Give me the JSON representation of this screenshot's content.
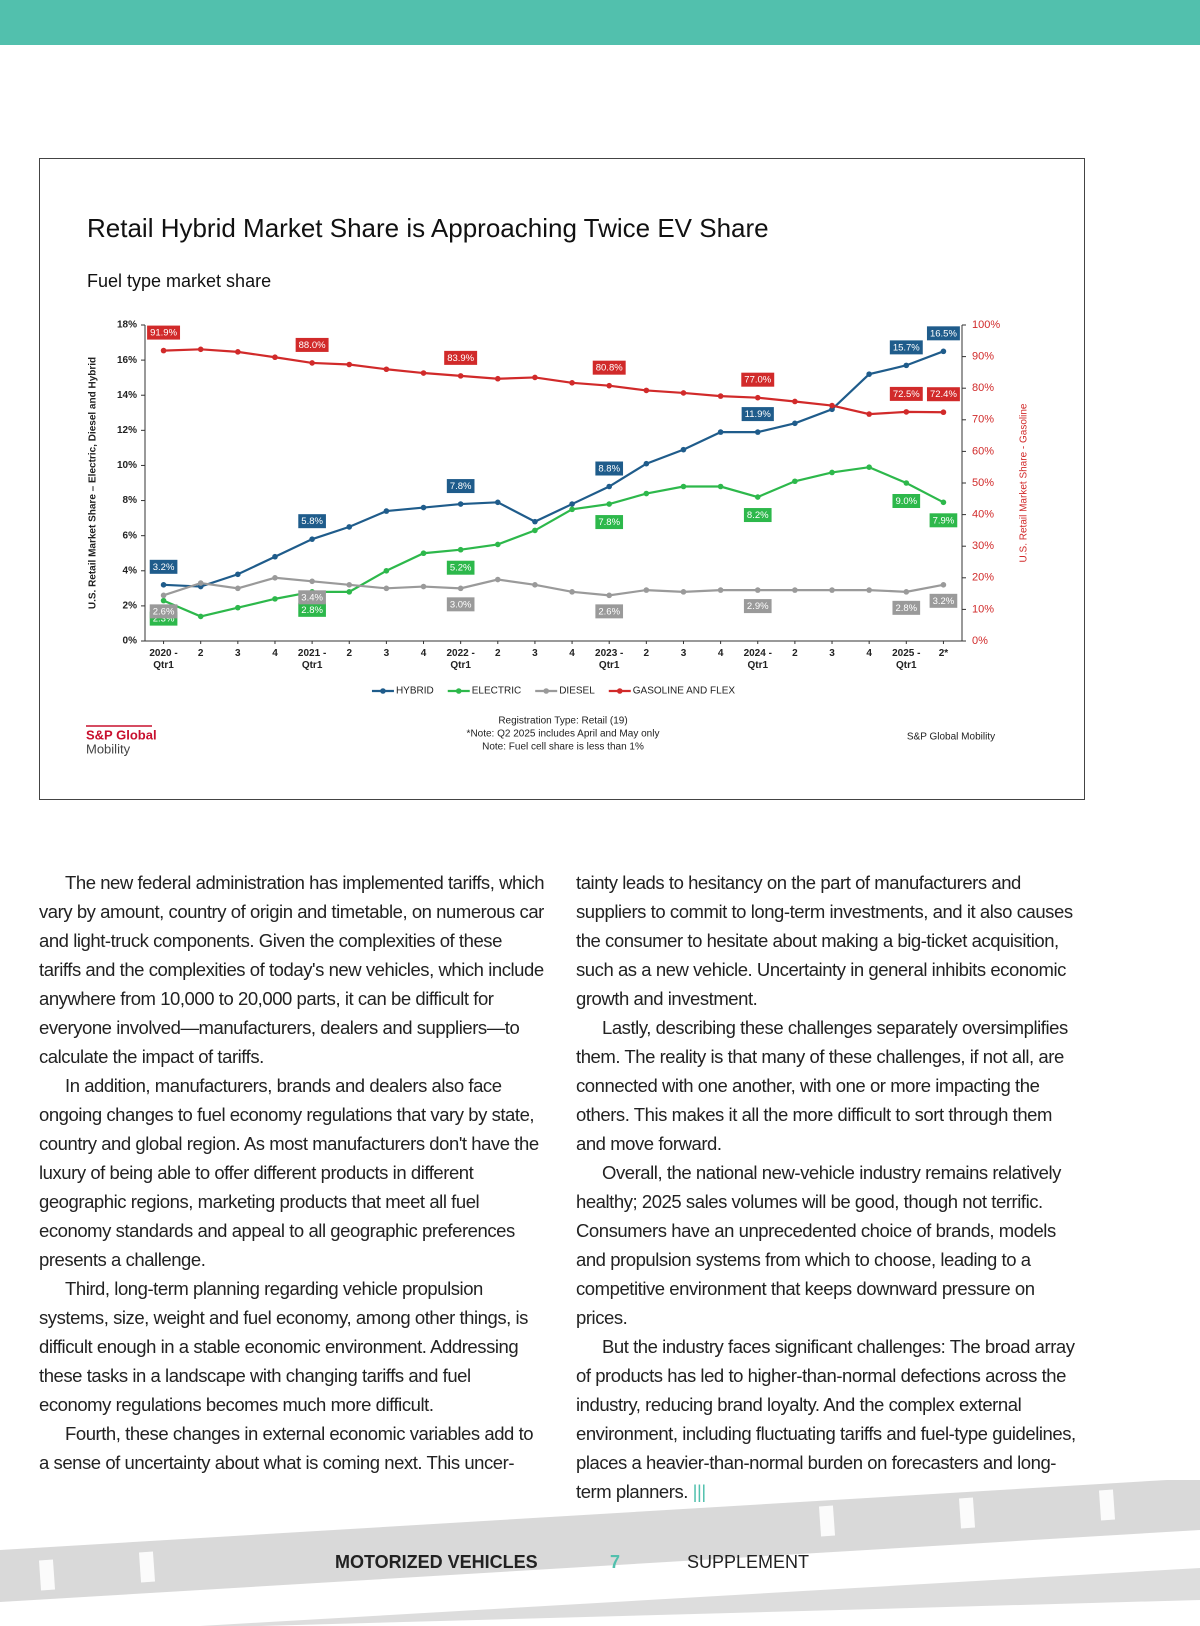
{
  "chart_data": {
    "type": "line",
    "title": "Retail Hybrid Market Share is Approaching Twice EV Share",
    "subtitle": "Fuel type market share",
    "ylabel": "U.S. Retail Market Share – Electric, Diesel and Hybrid",
    "y2label": "U.S. Retail Market Share - Gasoline",
    "categories": [
      "2020 - Qtr1",
      "2",
      "3",
      "4",
      "2021 - Qtr1",
      "2",
      "3",
      "4",
      "2022 - Qtr1",
      "2",
      "3",
      "4",
      "2023 - Qtr1",
      "2",
      "3",
      "4",
      "2024 - Qtr1",
      "2",
      "3",
      "4",
      "2025 - Qtr1",
      "2*"
    ],
    "ylim": [
      0,
      18
    ],
    "yticks": [
      {
        "value": 0,
        "label": "0%"
      },
      {
        "value": 2,
        "label": "2%"
      },
      {
        "value": 4,
        "label": "4%"
      },
      {
        "value": 6,
        "label": "6%"
      },
      {
        "value": 8,
        "label": "8%"
      },
      {
        "value": 10,
        "label": "10%"
      },
      {
        "value": 12,
        "label": "12%"
      },
      {
        "value": 14,
        "label": "14%"
      },
      {
        "value": 16,
        "label": "16%"
      },
      {
        "value": 18,
        "label": "18%"
      }
    ],
    "y2lim": [
      0,
      100
    ],
    "y2ticks": [
      {
        "value": 0,
        "label": "0%"
      },
      {
        "value": 10,
        "label": "10%"
      },
      {
        "value": 20,
        "label": "20%"
      },
      {
        "value": 30,
        "label": "30%"
      },
      {
        "value": 40,
        "label": "40%"
      },
      {
        "value": 50,
        "label": "50%"
      },
      {
        "value": 60,
        "label": "60%"
      },
      {
        "value": 70,
        "label": "70%"
      },
      {
        "value": 80,
        "label": "80%"
      },
      {
        "value": 90,
        "label": "90%"
      },
      {
        "value": 100,
        "label": "100%"
      }
    ],
    "grid": false,
    "legend": "bottom",
    "series": [
      {
        "name": "HYBRID",
        "color": "#1f5c8b",
        "values": [
          3.2,
          3.1,
          3.8,
          4.8,
          5.8,
          6.5,
          7.4,
          7.6,
          7.8,
          7.9,
          6.8,
          7.8,
          8.8,
          10.1,
          10.9,
          11.9,
          11.9,
          12.4,
          13.2,
          15.2,
          15.7,
          16.5
        ],
        "value_labels": [
          "3.2%",
          null,
          null,
          null,
          "5.8%",
          null,
          null,
          null,
          "7.8%",
          null,
          null,
          null,
          "8.8%",
          null,
          null,
          null,
          "11.9%",
          null,
          null,
          null,
          "15.7%",
          "16.5%"
        ]
      },
      {
        "name": "ELECTRIC",
        "color": "#2db84b",
        "values": [
          2.3,
          1.4,
          1.9,
          2.4,
          2.8,
          2.8,
          4.0,
          5.0,
          5.2,
          5.5,
          6.3,
          7.5,
          7.8,
          8.4,
          8.8,
          8.8,
          8.2,
          9.1,
          9.6,
          9.9,
          9.0,
          7.9
        ],
        "value_labels": [
          "2.3%",
          null,
          null,
          null,
          "2.8%",
          null,
          null,
          null,
          "5.2%",
          null,
          null,
          null,
          "7.8%",
          null,
          null,
          null,
          "8.2%",
          null,
          null,
          null,
          "9.0%",
          "7.9%"
        ]
      },
      {
        "name": "DIESEL",
        "color": "#9a9a9a",
        "values": [
          2.6,
          3.3,
          3.0,
          3.6,
          3.4,
          3.2,
          3.0,
          3.1,
          3.0,
          3.5,
          3.2,
          2.8,
          2.6,
          2.9,
          2.8,
          2.9,
          2.9,
          2.9,
          2.9,
          2.9,
          2.8,
          3.2
        ],
        "value_labels": [
          "2.6%",
          null,
          null,
          null,
          "3.4%",
          null,
          null,
          null,
          "3.0%",
          null,
          null,
          null,
          "2.6%",
          null,
          null,
          null,
          "2.9%",
          null,
          null,
          null,
          "2.8%",
          "3.2%"
        ]
      },
      {
        "name": "GASOLINE AND FLEX",
        "color": "#d12a2a",
        "axis": "y2",
        "values": [
          91.9,
          92.3,
          91.5,
          89.8,
          88.0,
          87.5,
          86.0,
          84.8,
          83.9,
          83.0,
          83.4,
          81.7,
          80.8,
          79.3,
          78.5,
          77.5,
          77.0,
          75.8,
          74.5,
          71.8,
          72.5,
          72.4
        ],
        "value_labels": [
          "91.9%",
          null,
          null,
          null,
          "88.0%",
          null,
          null,
          null,
          "83.9%",
          null,
          null,
          null,
          "80.8%",
          null,
          null,
          null,
          "77.0%",
          null,
          null,
          null,
          "72.5%",
          "72.4%"
        ]
      }
    ],
    "notes": [
      "Registration Type: Retail (19)",
      "*Note: Q2 2025 includes April and May only",
      "Note: Fuel cell share is less than 1%"
    ],
    "logo": [
      "S&P Global",
      "Mobility"
    ],
    "source": "S&P Global Mobility"
  },
  "article": {
    "left_column": [
      "The new federal administration has implemented tariffs, which vary by amount, country of origin and timetable, on numerous car and light-truck components. Given the complexities of these tariffs and the complexities of today's new vehicles, which include anywhere from 10,000 to 20,000 parts, it can be difficult for everyone involved—manufacturers, dealers and suppliers—to calculate the impact of tariffs.",
      "In addition, manufacturers, brands and dealers also face ongoing changes to fuel economy regulations that vary by state, country and global region. As most manufacturers don't have the luxury of being able to offer different products in different geographic regions, marketing products that meet all fuel economy standards and appeal to all geographic preferences presents a challenge.",
      "Third, long-term planning regarding vehicle propulsion systems, size, weight and fuel economy, among other things, is difficult enough in a stable economic environment. Addressing these tasks in a landscape with changing tariffs and fuel economy regulations becomes much more difficult.",
      "Fourth, these changes in external economic variables add to a sense of uncertainty about what is coming next. This uncer-"
    ],
    "right_column": [
      "tainty leads to hesitancy on the part of manufacturers and suppliers to commit to long-term investments, and it also causes the consumer to hesitate about making a big-ticket acquisition, such as a new vehicle. Uncertainty in general inhibits economic growth and investment.",
      "Lastly, describing these challenges separately oversimplifies them. The reality is that many of these challenges, if not all, are connected with one another, with one or more impacting the others. This makes it all the more difficult to sort through them and move forward.",
      "Overall, the national new-vehicle industry remains relatively healthy; 2025 sales volumes will be good, though not terrific. Consumers have an unprecedented choice of brands, models and propulsion systems from which to choose, leading to a competitive environment that keeps downward pressure on prices.",
      "But the industry faces significant challenges: The broad array of products has led to higher-than-normal defections across the industry, reducing brand loyalty. And the complex external environment, including fluctuating tariffs and fuel-type guidelines, places a heavier-than-normal burden on forecasters and long-term planners."
    ],
    "end_mark": "|||"
  },
  "footer": {
    "left": "MOTORIZED VEHICLES",
    "page_number": "7",
    "right": "SUPPLEMENT"
  }
}
